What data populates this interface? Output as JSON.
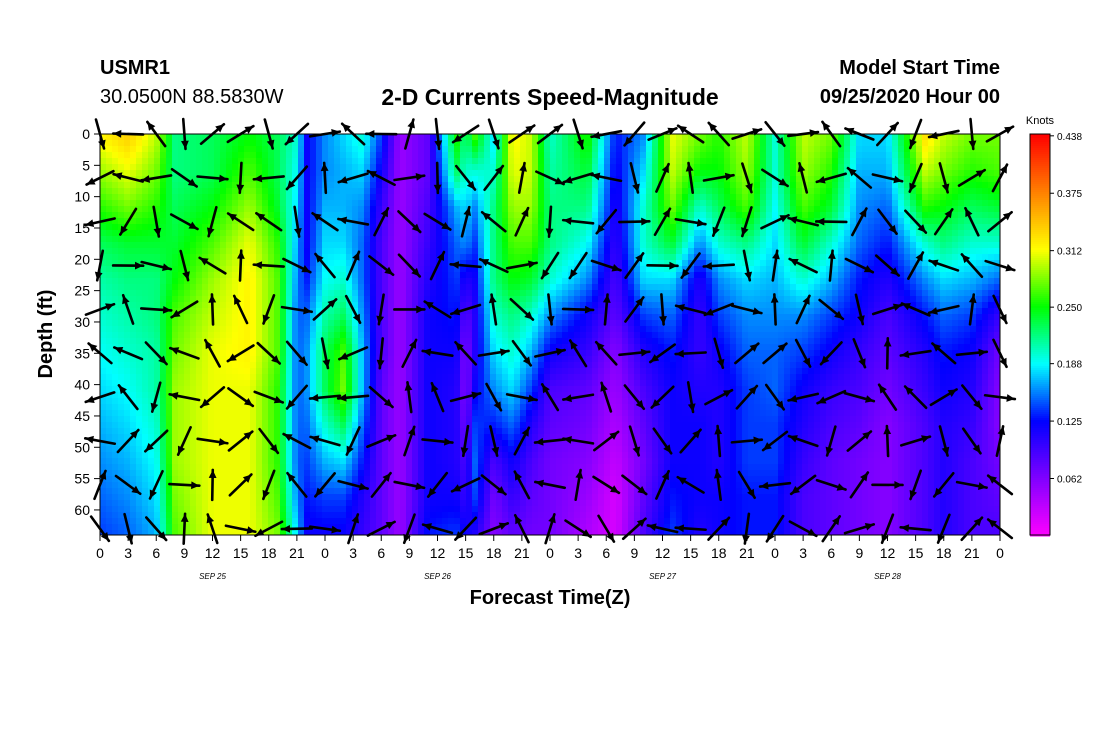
{
  "header": {
    "station": "USMR1",
    "coords": "30.0500N 88.5830W",
    "title": "2-D Currents Speed-Magnitude",
    "start_label": "Model Start Time",
    "start_value": "09/25/2020 Hour 00"
  },
  "chart_data": {
    "type": "heatmap",
    "title": "2-D Currents Speed-Magnitude",
    "xlabel": "Forecast Time(Z)",
    "ylabel": "Depth (ft)",
    "x_ticks": [
      "0",
      "3",
      "6",
      "9",
      "12",
      "15",
      "18",
      "21",
      "0",
      "3",
      "6",
      "9",
      "12",
      "15",
      "18",
      "21",
      "0",
      "3",
      "6",
      "9",
      "12",
      "15",
      "18",
      "21",
      "0",
      "3",
      "6",
      "9",
      "12",
      "15",
      "18",
      "21",
      "0"
    ],
    "date_labels": [
      "SEP 25",
      "SEP 26",
      "SEP 27",
      "SEP 28"
    ],
    "y_ticks": [
      0,
      5,
      10,
      15,
      20,
      25,
      30,
      35,
      40,
      45,
      50,
      55,
      60
    ],
    "xlim_hours": [
      0,
      96
    ],
    "ylim_ft": [
      0,
      64
    ],
    "colorbar": {
      "unit": "Knots",
      "ticks": [
        "0.438",
        "0.375",
        "0.312",
        "0.250",
        "0.188",
        "0.125",
        "0.062"
      ],
      "range": [
        0.0,
        0.44
      ]
    },
    "palette": [
      "#ff00ff",
      "#8000ff",
      "#0000ff",
      "#00ffff",
      "#00ff00",
      "#ffff00",
      "#ff8000",
      "#ff0000"
    ],
    "speed_profiles": [
      {
        "hour": 0,
        "values": [
          0.32,
          0.29,
          0.26,
          0.23,
          0.21,
          0.2,
          0.19,
          0.18,
          0.17,
          0.16,
          0.15,
          0.14
        ]
      },
      {
        "hour": 3,
        "values": [
          0.34,
          0.31,
          0.28,
          0.24,
          0.22,
          0.21,
          0.2,
          0.19,
          0.18,
          0.17,
          0.16,
          0.15
        ]
      },
      {
        "hour": 6,
        "values": [
          0.3,
          0.28,
          0.26,
          0.24,
          0.22,
          0.22,
          0.21,
          0.21,
          0.2,
          0.19,
          0.18,
          0.17
        ]
      },
      {
        "hour": 8,
        "values": [
          0.22,
          0.22,
          0.23,
          0.24,
          0.25,
          0.27,
          0.28,
          0.29,
          0.29,
          0.29,
          0.28,
          0.27
        ]
      },
      {
        "hour": 12,
        "values": [
          0.23,
          0.23,
          0.25,
          0.27,
          0.29,
          0.3,
          0.31,
          0.31,
          0.31,
          0.31,
          0.31,
          0.31
        ]
      },
      {
        "hour": 16,
        "values": [
          0.25,
          0.27,
          0.29,
          0.31,
          0.32,
          0.32,
          0.32,
          0.31,
          0.31,
          0.31,
          0.31,
          0.31
        ]
      },
      {
        "hour": 19,
        "values": [
          0.23,
          0.23,
          0.24,
          0.26,
          0.27,
          0.27,
          0.27,
          0.26,
          0.26,
          0.26,
          0.27,
          0.28
        ]
      },
      {
        "hour": 21,
        "values": [
          0.2,
          0.19,
          0.18,
          0.17,
          0.16,
          0.15,
          0.15,
          0.15,
          0.15,
          0.15,
          0.16,
          0.18
        ]
      },
      {
        "hour": 22,
        "values": [
          0.12,
          0.12,
          0.12,
          0.12,
          0.13,
          0.15,
          0.16,
          0.16,
          0.15,
          0.14,
          0.13,
          0.12
        ]
      },
      {
        "hour": 24,
        "values": [
          0.16,
          0.16,
          0.17,
          0.18,
          0.19,
          0.21,
          0.23,
          0.23,
          0.2,
          0.17,
          0.14,
          0.12
        ]
      },
      {
        "hour": 26,
        "values": [
          0.18,
          0.17,
          0.17,
          0.18,
          0.2,
          0.23,
          0.27,
          0.28,
          0.23,
          0.18,
          0.14,
          0.12
        ]
      },
      {
        "hour": 28,
        "values": [
          0.2,
          0.18,
          0.16,
          0.15,
          0.15,
          0.16,
          0.17,
          0.17,
          0.15,
          0.13,
          0.11,
          0.1
        ]
      },
      {
        "hour": 30,
        "values": [
          0.14,
          0.12,
          0.1,
          0.09,
          0.09,
          0.09,
          0.09,
          0.08,
          0.08,
          0.08,
          0.08,
          0.08
        ]
      },
      {
        "hour": 32,
        "values": [
          0.05,
          0.05,
          0.05,
          0.05,
          0.05,
          0.05,
          0.05,
          0.05,
          0.05,
          0.05,
          0.05,
          0.05
        ]
      },
      {
        "hour": 35,
        "values": [
          0.08,
          0.08,
          0.09,
          0.1,
          0.11,
          0.12,
          0.12,
          0.12,
          0.12,
          0.12,
          0.12,
          0.13
        ]
      },
      {
        "hour": 38,
        "values": [
          0.26,
          0.23,
          0.17,
          0.15,
          0.14,
          0.13,
          0.12,
          0.11,
          0.11,
          0.11,
          0.12,
          0.14
        ]
      },
      {
        "hour": 39,
        "values": [
          0.22,
          0.2,
          0.18,
          0.16,
          0.11,
          0.08,
          0.06,
          0.06,
          0.07,
          0.09,
          0.1,
          0.12
        ]
      },
      {
        "hour": 40,
        "values": [
          0.27,
          0.2,
          0.16,
          0.14,
          0.12,
          0.11,
          0.11,
          0.12,
          0.14,
          0.15,
          0.14,
          0.11
        ]
      },
      {
        "hour": 42,
        "values": [
          0.18,
          0.2,
          0.22,
          0.22,
          0.22,
          0.2,
          0.18,
          0.16,
          0.13,
          0.09,
          0.07,
          0.06
        ]
      },
      {
        "hour": 44,
        "values": [
          0.32,
          0.31,
          0.29,
          0.27,
          0.25,
          0.22,
          0.2,
          0.18,
          0.15,
          0.12,
          0.1,
          0.08
        ]
      },
      {
        "hour": 46,
        "values": [
          0.3,
          0.3,
          0.29,
          0.27,
          0.24,
          0.2,
          0.17,
          0.14,
          0.11,
          0.09,
          0.08,
          0.07
        ]
      },
      {
        "hour": 48,
        "values": [
          0.2,
          0.21,
          0.22,
          0.22,
          0.2,
          0.16,
          0.12,
          0.09,
          0.08,
          0.07,
          0.07,
          0.07
        ]
      },
      {
        "hour": 52,
        "values": [
          0.26,
          0.24,
          0.22,
          0.19,
          0.16,
          0.12,
          0.1,
          0.08,
          0.07,
          0.06,
          0.05,
          0.04
        ]
      },
      {
        "hour": 55,
        "values": [
          0.13,
          0.12,
          0.11,
          0.1,
          0.09,
          0.08,
          0.06,
          0.05,
          0.04,
          0.03,
          0.02,
          0.02
        ]
      },
      {
        "hour": 58,
        "values": [
          0.16,
          0.18,
          0.2,
          0.2,
          0.18,
          0.14,
          0.11,
          0.09,
          0.08,
          0.07,
          0.08,
          0.09
        ]
      },
      {
        "hour": 61,
        "values": [
          0.31,
          0.3,
          0.28,
          0.24,
          0.18,
          0.15,
          0.13,
          0.12,
          0.12,
          0.12,
          0.13,
          0.14
        ]
      },
      {
        "hour": 64,
        "values": [
          0.28,
          0.25,
          0.2,
          0.16,
          0.11,
          0.1,
          0.1,
          0.11,
          0.12,
          0.12,
          0.12,
          0.11
        ]
      },
      {
        "hour": 66,
        "values": [
          0.26,
          0.25,
          0.23,
          0.2,
          0.16,
          0.14,
          0.12,
          0.11,
          0.11,
          0.11,
          0.12,
          0.12
        ]
      },
      {
        "hour": 69,
        "values": [
          0.3,
          0.29,
          0.27,
          0.22,
          0.18,
          0.16,
          0.15,
          0.14,
          0.14,
          0.14,
          0.13,
          0.13
        ]
      },
      {
        "hour": 72,
        "values": [
          0.2,
          0.2,
          0.19,
          0.18,
          0.17,
          0.16,
          0.15,
          0.15,
          0.14,
          0.14,
          0.13,
          0.13
        ]
      },
      {
        "hour": 75,
        "values": [
          0.3,
          0.29,
          0.27,
          0.24,
          0.2,
          0.16,
          0.14,
          0.12,
          0.11,
          0.1,
          0.09,
          0.09
        ]
      },
      {
        "hour": 78,
        "values": [
          0.28,
          0.26,
          0.24,
          0.2,
          0.17,
          0.14,
          0.12,
          0.1,
          0.09,
          0.08,
          0.08,
          0.08
        ]
      },
      {
        "hour": 81,
        "values": [
          0.18,
          0.17,
          0.16,
          0.15,
          0.13,
          0.12,
          0.1,
          0.09,
          0.08,
          0.07,
          0.07,
          0.07
        ]
      },
      {
        "hour": 84,
        "values": [
          0.18,
          0.17,
          0.15,
          0.13,
          0.11,
          0.09,
          0.08,
          0.07,
          0.06,
          0.06,
          0.06,
          0.06
        ]
      },
      {
        "hour": 88,
        "values": [
          0.33,
          0.3,
          0.26,
          0.2,
          0.16,
          0.13,
          0.11,
          0.1,
          0.09,
          0.09,
          0.09,
          0.09
        ]
      },
      {
        "hour": 90,
        "values": [
          0.3,
          0.28,
          0.25,
          0.22,
          0.18,
          0.15,
          0.13,
          0.12,
          0.11,
          0.11,
          0.11,
          0.11
        ]
      },
      {
        "hour": 93,
        "values": [
          0.28,
          0.26,
          0.23,
          0.2,
          0.17,
          0.14,
          0.12,
          0.11,
          0.1,
          0.09,
          0.09,
          0.09
        ]
      },
      {
        "hour": 96,
        "values": [
          0.28,
          0.27,
          0.24,
          0.2,
          0.15,
          0.1,
          0.07,
          0.06,
          0.06,
          0.07,
          0.08,
          0.09
        ]
      }
    ]
  }
}
